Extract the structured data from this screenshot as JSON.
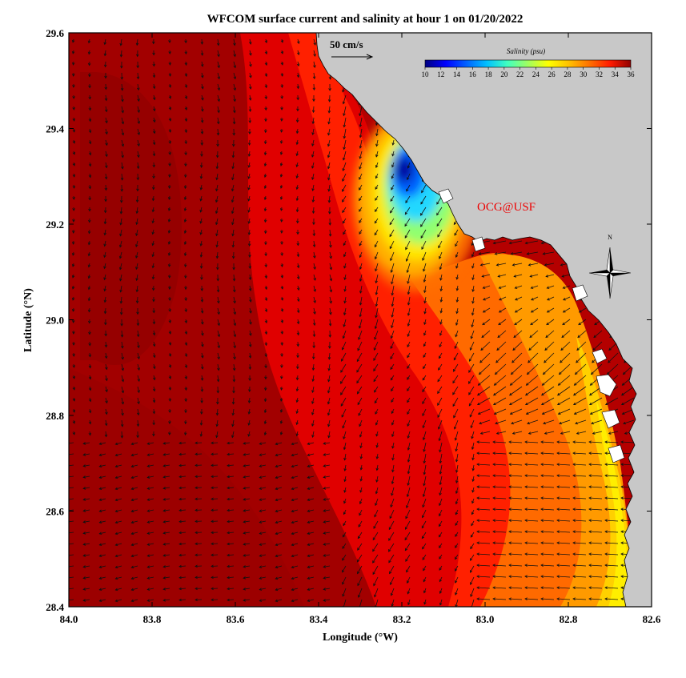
{
  "title": "WFCOM surface current and salinity at hour 1 on 01/20/2022",
  "x_axis": {
    "label": "Longitude (°W)",
    "min": 84.0,
    "max": 82.6,
    "ticks": [
      "84.0",
      "83.8",
      "83.6",
      "83.4",
      "83.2",
      "83.0",
      "82.8",
      "82.6"
    ]
  },
  "y_axis": {
    "label": "Latitude (°N)",
    "min": 28.4,
    "max": 29.6,
    "ticks": [
      "28.4",
      "28.6",
      "28.8",
      "29.0",
      "29.2",
      "29.4",
      "29.6"
    ]
  },
  "vector_scale": {
    "label": "50 cm/s"
  },
  "colorbar": {
    "title": "Salinity (psu)",
    "ticks": [
      "10",
      "12",
      "14",
      "16",
      "18",
      "20",
      "22",
      "24",
      "26",
      "28",
      "30",
      "32",
      "34",
      "36"
    ]
  },
  "credit": "OCG@USF",
  "compass": {
    "north": "N"
  },
  "colors": {
    "land": "#c8c8c8",
    "credit": "#ee0000",
    "salinity_36": "#8b0000",
    "salinity_34": "#c80000",
    "salinity_32": "#ff1a00",
    "salinity_30": "#ff6a00",
    "salinity_28": "#ffb000",
    "salinity_26": "#ffe800",
    "salinity_22": "#7fff7f",
    "salinity_18": "#00e0ff",
    "salinity_14": "#0066ff",
    "salinity_10": "#0000a0"
  }
}
